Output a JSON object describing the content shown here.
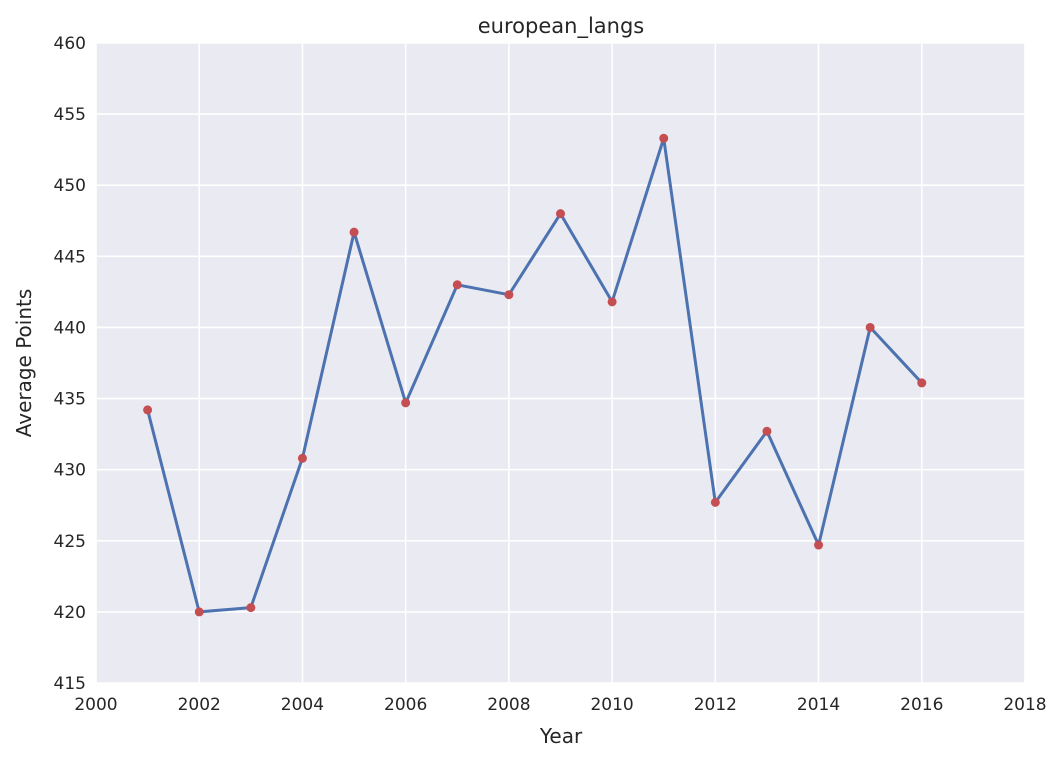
{
  "chart_data": {
    "type": "line",
    "title": "european_langs",
    "xlabel": "Year",
    "ylabel": "Average Points",
    "xlim": [
      2000,
      2018
    ],
    "ylim": [
      415,
      460
    ],
    "xticks": [
      2000,
      2002,
      2004,
      2006,
      2008,
      2010,
      2012,
      2014,
      2016,
      2018
    ],
    "yticks": [
      415,
      420,
      425,
      430,
      435,
      440,
      445,
      450,
      455,
      460
    ],
    "grid": true,
    "background": "#eaeaf2",
    "line_color": "#4c72b0",
    "marker_color": "#c44e52",
    "series": [
      {
        "x": [
          2001,
          2002,
          2003,
          2004,
          2005,
          2006,
          2007,
          2008,
          2009,
          2010,
          2011,
          2012,
          2013,
          2014,
          2015,
          2016
        ],
        "values": [
          434.2,
          420.0,
          420.3,
          430.8,
          446.7,
          434.7,
          443.0,
          442.3,
          448.0,
          441.8,
          453.3,
          427.7,
          432.7,
          424.7,
          440.0,
          436.1
        ]
      }
    ]
  }
}
